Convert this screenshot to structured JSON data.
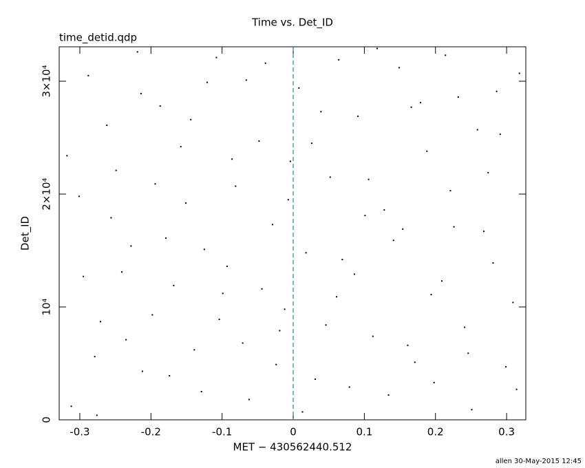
{
  "chart_data": {
    "type": "scatter",
    "title": "Time vs. Det_ID",
    "subtitle": "time_detid.qdp",
    "x_label": "MET − 430562440.512",
    "y_label": "Det_ID",
    "footer": "allen 30-May-2015 12:45",
    "color": "#000000",
    "vline": {
      "x": 0,
      "color": "#1a8a9a"
    },
    "xlim": [
      -0.329,
      0.327
    ],
    "ylim": [
      0,
      33050
    ],
    "xticks": [
      -0.3,
      -0.2,
      -0.1,
      0,
      0.1,
      0.2,
      0.3
    ],
    "yticks": [
      0,
      {
        "value": 10000,
        "label": "10⁴"
      },
      {
        "value": 20000,
        "label": "2×10⁴"
      },
      {
        "value": 30000,
        "label": "3×10⁴"
      }
    ],
    "x": [
      -0.312,
      -0.288,
      -0.271,
      -0.249,
      -0.228,
      -0.212,
      -0.187,
      -0.168,
      -0.151,
      -0.129,
      -0.108,
      -0.093,
      -0.071,
      -0.048,
      -0.029,
      -0.012,
      0.008,
      0.031,
      0.052,
      0.069,
      0.091,
      0.112,
      0.128,
      0.149,
      0.171,
      0.188,
      0.209,
      0.232,
      0.251,
      0.268,
      0.291,
      0.309,
      -0.301,
      -0.279,
      -0.262,
      -0.241,
      -0.219,
      -0.198,
      -0.179,
      -0.158,
      -0.139,
      -0.121,
      -0.099,
      -0.081,
      -0.062,
      -0.039,
      -0.019,
      -0.004,
      0.018,
      0.039,
      0.061,
      0.079,
      0.101,
      0.118,
      0.141,
      0.161,
      0.179,
      0.198,
      0.221,
      0.241,
      0.259,
      0.281,
      0.299,
      0.318,
      -0.318,
      -0.295,
      -0.276,
      -0.256,
      -0.235,
      -0.214,
      -0.194,
      -0.174,
      -0.144,
      -0.125,
      -0.104,
      -0.086,
      -0.066,
      -0.044,
      -0.024,
      -0.007,
      0.013,
      0.026,
      0.046,
      0.064,
      0.086,
      0.106,
      0.134,
      0.154,
      0.166,
      0.194,
      0.214,
      0.226,
      0.246,
      0.274,
      0.286,
      0.314
    ],
    "values": [
      1200,
      30500,
      8700,
      22100,
      15400,
      4300,
      27800,
      11900,
      19200,
      2500,
      32100,
      13600,
      6800,
      24700,
      17300,
      9800,
      29400,
      3600,
      21500,
      14200,
      26900,
      7400,
      18600,
      31200,
      5100,
      23800,
      12300,
      28600,
      900,
      16700,
      25300,
      10400,
      19800,
      5600,
      26100,
      13100,
      32600,
      9300,
      16100,
      24200,
      6200,
      29900,
      11200,
      20700,
      1800,
      31600,
      7900,
      22900,
      14800,
      27300,
      10900,
      2900,
      18100,
      32900,
      15900,
      6600,
      28100,
      3300,
      20300,
      8200,
      25700,
      13900,
      4700,
      30700,
      23400,
      12700,
      400,
      17900,
      7100,
      28900,
      20900,
      3900,
      26600,
      15100,
      8900,
      23100,
      30100,
      11600,
      4900,
      19500,
      700,
      24500,
      8400,
      31900,
      12900,
      21300,
      2200,
      16900,
      27700,
      11100,
      32300,
      17100,
      5900,
      21900,
      29100,
      2700
    ]
  }
}
